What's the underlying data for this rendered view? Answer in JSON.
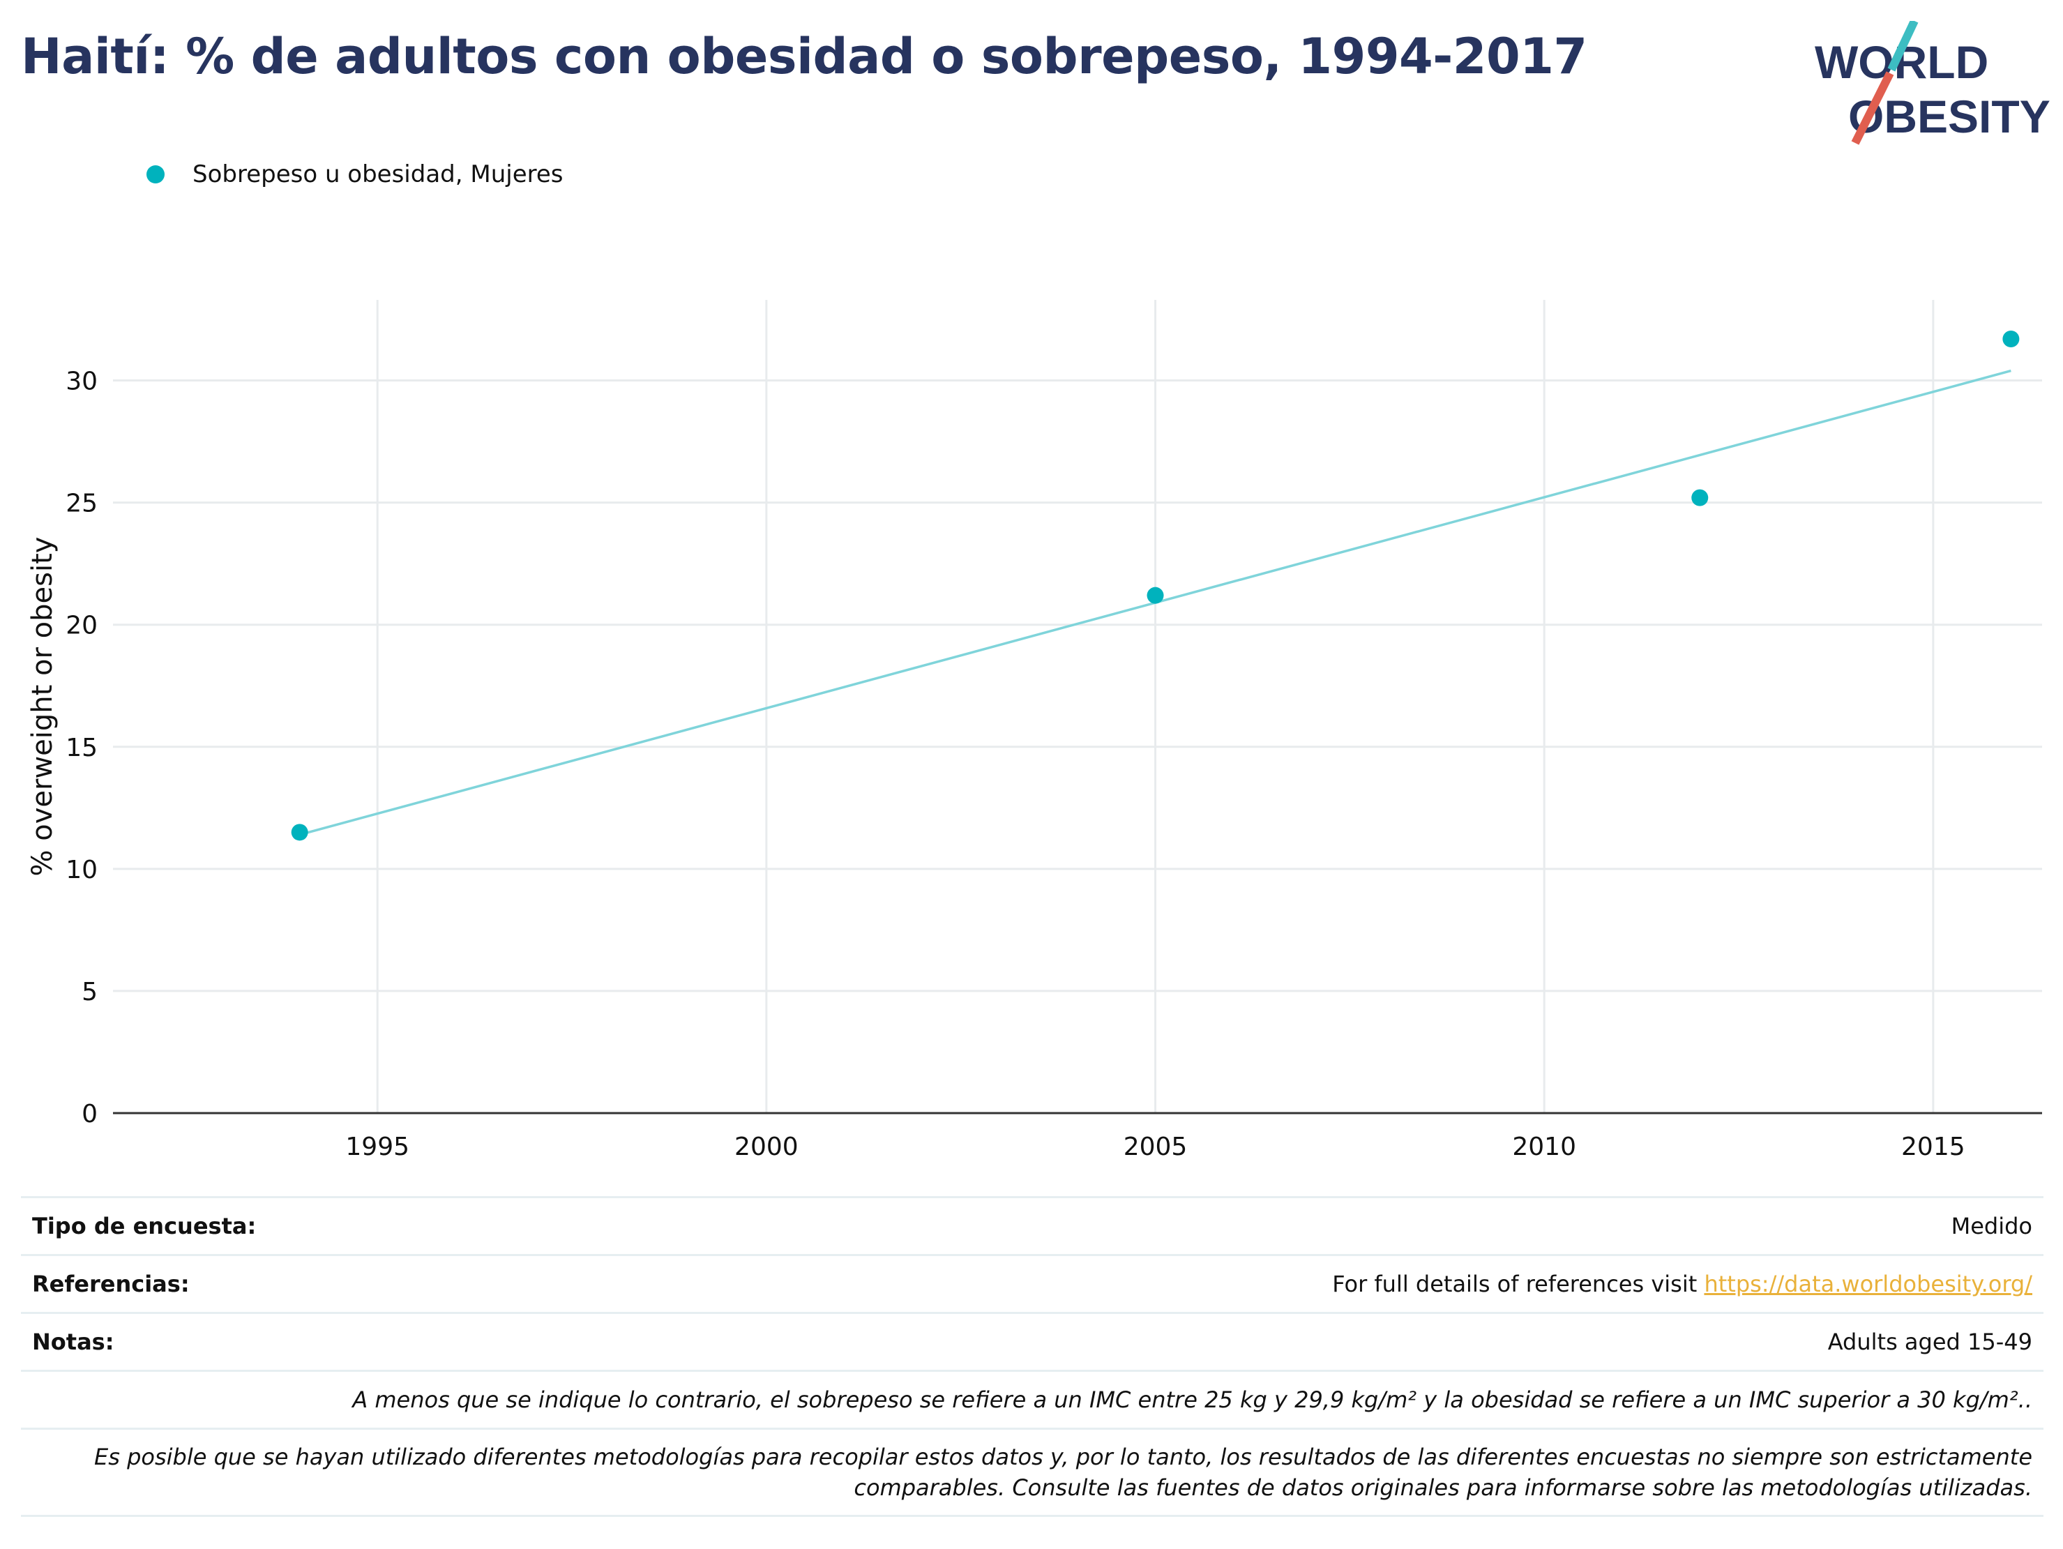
{
  "title": "Haití: % de adultos con obesidad o sobrepeso, 1994-2017",
  "logo": {
    "line1": "WORLD",
    "line2": "OBESITY",
    "text_color": "#27345f",
    "slash_top_color": "#3dbdc2",
    "slash_bottom_color": "#e05e4f"
  },
  "colors": {
    "series": "#00b2bd",
    "trendline": "#7fd4da",
    "title": "#27345f",
    "grid": "#e8ebed",
    "link": "#e9b13a"
  },
  "chart_data": {
    "type": "scatter",
    "title": "Haití: % de adultos con obesidad o sobrepeso, 1994-2017",
    "xlabel": "",
    "ylabel": "% overweight or obesity",
    "xlim": [
      1991.6,
      2016.4
    ],
    "ylim": [
      0,
      33.3
    ],
    "xticks": [
      1995,
      2000,
      2005,
      2010,
      2015
    ],
    "yticks": [
      0,
      5,
      10,
      15,
      20,
      25,
      30
    ],
    "grid": true,
    "legend_position": "top-left",
    "series": [
      {
        "name": "Sobrepeso u obesidad, Mujeres",
        "x": [
          1994,
          2005,
          2012,
          2016
        ],
        "y": [
          11.5,
          21.2,
          25.2,
          31.7
        ]
      }
    ],
    "trendline": {
      "x": [
        1994,
        2016
      ],
      "y": [
        11.4,
        30.4
      ]
    }
  },
  "info": {
    "survey_type_label": "Tipo de encuesta:",
    "survey_type_value": "Medido",
    "references_label": "Referencias:",
    "references_text": "For full details of references visit ",
    "references_link": "https://data.worldobesity.org/",
    "notes_label": "Notas:",
    "notes_value": "Adults aged 15-49",
    "note1": "A menos que se indique lo contrario, el sobrepeso se refiere a un IMC entre 25 kg y 29,9 kg/m² y la obesidad se refiere a un IMC superior a 30 kg/m²..",
    "note2_line1": "Es posible que se hayan utilizado diferentes metodologías para recopilar estos datos y, por lo tanto, los resultados de las diferentes encuestas no siempre son estrictamente",
    "note2_line2": "comparables. Consulte las fuentes de datos originales para informarse sobre las metodologías utilizadas."
  }
}
